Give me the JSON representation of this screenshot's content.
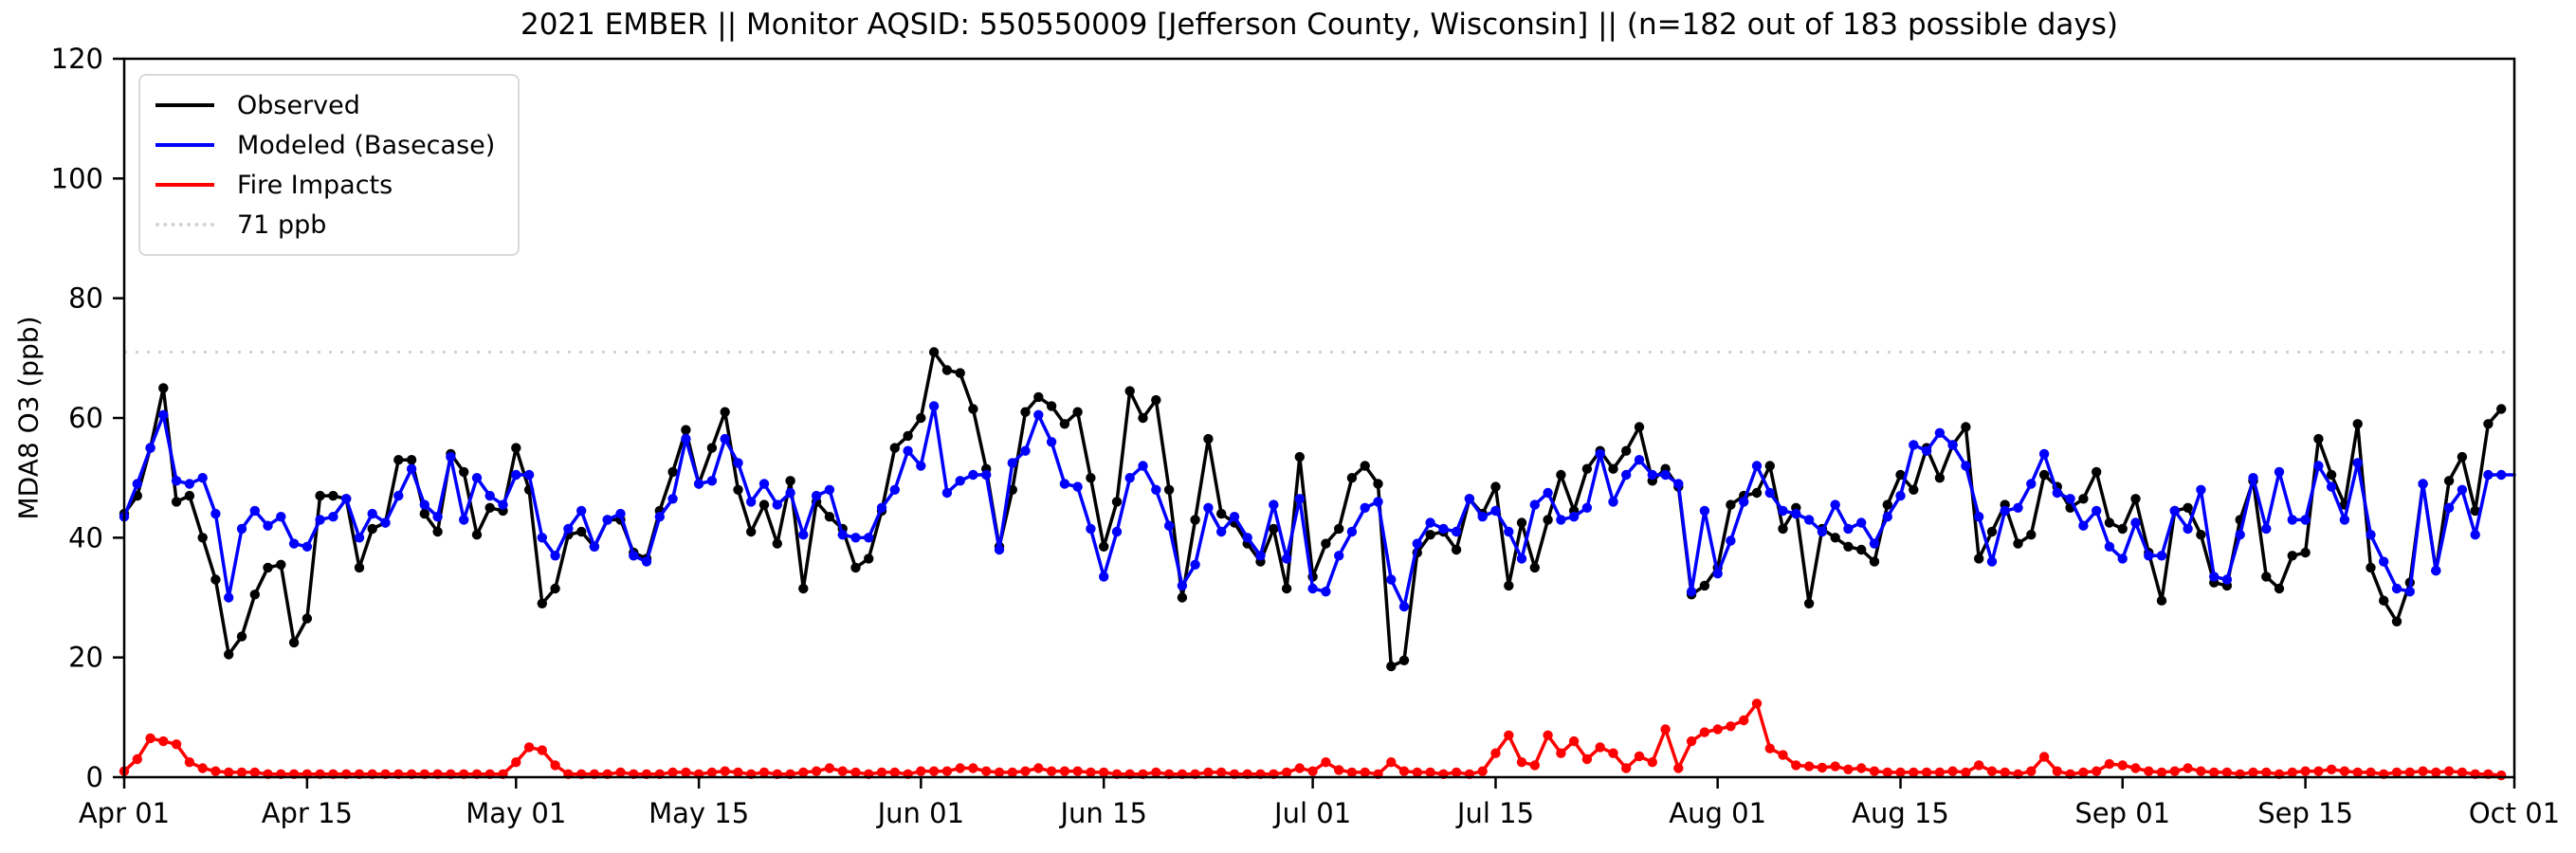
{
  "chart_data": {
    "type": "line",
    "title": "2021 EMBER || Monitor AQSID: 550550009 [Jefferson County, Wisconsin] || (n=182 out of 183 possible days)",
    "xlabel": "",
    "ylabel": "MDA8 O3 (ppb)",
    "ylim": [
      0,
      120
    ],
    "y_ticks": [
      0,
      20,
      40,
      60,
      80,
      100,
      120
    ],
    "x_tick_labels": [
      "Apr 01",
      "Apr 15",
      "May 01",
      "May 15",
      "Jun 01",
      "Jun 15",
      "Jul 01",
      "Jul 15",
      "Aug 01",
      "Aug 15",
      "Sep 01",
      "Sep 15",
      "Oct 01"
    ],
    "x_tick_day_index": [
      0,
      14,
      30,
      44,
      61,
      75,
      91,
      105,
      122,
      136,
      153,
      167,
      183
    ],
    "x_range_days": 183,
    "grid": false,
    "threshold": {
      "value": 71,
      "label": "71 ppb",
      "color": "#d2d2d2"
    },
    "legend": {
      "position": "upper left",
      "items": [
        {
          "label": "Observed",
          "color": "#000000",
          "style": "solid"
        },
        {
          "label": "Modeled (Basecase)",
          "color": "#0000ff",
          "style": "solid"
        },
        {
          "label": "Fire Impacts",
          "color": "#ff0000",
          "style": "solid"
        },
        {
          "label": "71 ppb",
          "color": "#d2d2d2",
          "style": "dotted"
        }
      ]
    },
    "series": [
      {
        "name": "Observed",
        "color": "#000000",
        "marker": "circle",
        "values": [
          44,
          47,
          55,
          65,
          46,
          47,
          40,
          33,
          20.5,
          23.5,
          30.5,
          35,
          35.5,
          22.5,
          26.5,
          47,
          47,
          46.5,
          35,
          41.5,
          42.5,
          53,
          53,
          44,
          41,
          54,
          51,
          40.5,
          45,
          44.5,
          55,
          48,
          29,
          31.5,
          40.5,
          41,
          38.5,
          43,
          43,
          37.5,
          36.5,
          44.5,
          51,
          58,
          49,
          55,
          61,
          48,
          41,
          45.5,
          39,
          49.5,
          31.5,
          46,
          43.5,
          41.5,
          35,
          36.5,
          44.5,
          55,
          57,
          60,
          71,
          68,
          67.5,
          61.5,
          51.5,
          38.5,
          48,
          61,
          63.5,
          62,
          59,
          61,
          50,
          38.5,
          46,
          64.5,
          60,
          63,
          48,
          30,
          43,
          56.5,
          44,
          42.5,
          39,
          36,
          41.5,
          31.5,
          53.5,
          33.5,
          39,
          41.5,
          50,
          52,
          49,
          18.5,
          19.5,
          37.5,
          40.5,
          41,
          38,
          46.5,
          44,
          48.5,
          32,
          42.5,
          35,
          43,
          50.5,
          44.5,
          51.5,
          54.5,
          51.5,
          54.5,
          58.5,
          49.5,
          51.5,
          48.5,
          30.5,
          32,
          35,
          45.5,
          47,
          47.5,
          52,
          41.5,
          45,
          29,
          41.5,
          40,
          38.5,
          38,
          36,
          45.5,
          50.5,
          48,
          55,
          50,
          55.5,
          58.5,
          36.5,
          41,
          45.5,
          39,
          40.5,
          50.5,
          48.5,
          45,
          46.5,
          51,
          42.5,
          41.5,
          46.5,
          37.5,
          29.5,
          44.5,
          45,
          40.5,
          32.5,
          32,
          43,
          49.5,
          33.5,
          31.5,
          37,
          37.5,
          56.5,
          50.5,
          45.5,
          59,
          35,
          29.5,
          26,
          32.5,
          49,
          34.5,
          49.5,
          53.5,
          44.5,
          59,
          61.5
        ]
      },
      {
        "name": "Modeled (Basecase)",
        "color": "#0000ff",
        "marker": "circle",
        "extend_to_right_axis": true,
        "values": [
          43.5,
          49,
          55,
          60.5,
          49.5,
          49,
          50,
          44,
          30,
          41.5,
          44.5,
          42,
          43.5,
          39,
          38.5,
          43,
          43.5,
          46.5,
          40,
          44,
          42.5,
          47,
          51.5,
          45.5,
          43.5,
          53.5,
          43,
          50,
          47,
          45.5,
          50.5,
          50.5,
          40,
          37,
          41.5,
          44.5,
          38.5,
          43,
          44,
          37,
          36,
          43.5,
          46.5,
          56.5,
          49,
          49.5,
          56.5,
          52.5,
          46,
          49,
          45.5,
          47.5,
          40.5,
          47,
          48,
          40.5,
          40,
          40,
          45,
          48,
          54.5,
          52,
          62,
          47.5,
          49.5,
          50.5,
          50.5,
          38,
          52.5,
          54.5,
          60.5,
          56,
          49,
          48.5,
          41.5,
          33.5,
          41,
          50,
          52,
          48,
          42,
          32,
          35.5,
          45,
          41,
          43.5,
          40,
          37,
          45.5,
          36.5,
          46.5,
          31.5,
          31,
          37,
          41,
          45,
          46,
          33,
          28.5,
          39,
          42.5,
          41.5,
          41,
          46.5,
          43.5,
          44.5,
          41,
          36.5,
          45.5,
          47.5,
          43,
          43.5,
          45,
          54,
          46,
          50.5,
          53,
          50.5,
          50.5,
          49,
          31,
          44.5,
          34,
          39.5,
          46,
          52,
          47.5,
          44.5,
          44,
          43,
          41,
          45.5,
          41.5,
          42.5,
          39,
          43.5,
          47,
          55.5,
          54.5,
          57.5,
          55.5,
          52,
          43.5,
          36,
          44.5,
          45,
          49,
          54,
          47.5,
          46.5,
          42,
          44.5,
          38.5,
          36.5,
          42.5,
          37,
          37,
          44.5,
          41.5,
          48,
          33.5,
          33,
          40.5,
          50,
          41.5,
          51,
          43,
          43,
          52,
          48.5,
          43,
          52.5,
          40.5,
          36,
          31.5,
          31,
          49,
          34.5,
          45,
          48,
          40.5,
          50.5,
          50.5
        ]
      },
      {
        "name": "Fire Impacts",
        "color": "#ff0000",
        "marker": "circle",
        "values": [
          1,
          3,
          6.5,
          6,
          5.5,
          2.5,
          1.5,
          1,
          0.8,
          0.8,
          0.8,
          0.5,
          0.5,
          0.5,
          0.5,
          0.5,
          0.5,
          0.5,
          0.5,
          0.5,
          0.5,
          0.5,
          0.5,
          0.5,
          0.5,
          0.5,
          0.5,
          0.5,
          0.5,
          0.5,
          2.5,
          5,
          4.5,
          2,
          0.5,
          0.5,
          0.5,
          0.5,
          0.8,
          0.5,
          0.5,
          0.5,
          0.8,
          0.8,
          0.5,
          0.8,
          1,
          0.8,
          0.5,
          0.8,
          0.5,
          0.5,
          0.8,
          1,
          1.5,
          1,
          0.8,
          0.5,
          0.8,
          0.8,
          0.5,
          1,
          1,
          1,
          1.5,
          1.5,
          1,
          0.8,
          0.8,
          1,
          1.5,
          1,
          1,
          1,
          0.8,
          0.8,
          0.5,
          0.5,
          0.5,
          0.8,
          0.5,
          0.5,
          0.5,
          0.8,
          0.8,
          0.5,
          0.5,
          0.5,
          0.5,
          0.8,
          1.5,
          1,
          2.5,
          1.2,
          0.8,
          0.8,
          0.5,
          2.5,
          1,
          0.8,
          0.8,
          0.5,
          0.8,
          0.5,
          1,
          4,
          7,
          2.5,
          2,
          7,
          4,
          6,
          3,
          5,
          4,
          1.5,
          3.5,
          2.5,
          8,
          1.5,
          6,
          7.5,
          8,
          8.5,
          9.5,
          12.3,
          4.8,
          3.7,
          2,
          1.8,
          1.6,
          1.8,
          1.3,
          1.5,
          1,
          0.8,
          0.8,
          0.8,
          0.8,
          0.8,
          1,
          0.8,
          2,
          1,
          0.8,
          0.5,
          1,
          3.4,
          1,
          0.5,
          0.8,
          1,
          2.2,
          2,
          1.5,
          1,
          0.8,
          1,
          1.5,
          1,
          0.8,
          0.8,
          0.5,
          0.8,
          0.8,
          0.5,
          0.8,
          1,
          1,
          1.3,
          1,
          0.8,
          0.8,
          0.5,
          0.8,
          0.8,
          1,
          0.8,
          1,
          0.8,
          0.5,
          0.5,
          0.3
        ]
      }
    ]
  }
}
